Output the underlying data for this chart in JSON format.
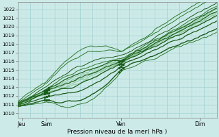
{
  "title": "",
  "xlabel": "Pression niveau de la mer( hPa )",
  "ylim": [
    1009.5,
    1022.8
  ],
  "xlim": [
    0,
    96
  ],
  "yticks": [
    1010,
    1011,
    1012,
    1013,
    1014,
    1015,
    1016,
    1017,
    1018,
    1019,
    1020,
    1021,
    1022
  ],
  "xtick_positions": [
    2,
    14,
    50,
    88
  ],
  "xtick_labels": [
    "Jeu",
    "Sam",
    "Ven",
    "Dim"
  ],
  "bg_color": "#cceae8",
  "grid_color_major": "#99cccc",
  "grid_color_minor": "#bbdddd",
  "line_color_dark": "#1a5c1a",
  "line_color_mid": "#2d7a2d",
  "line_color_light": "#5aaa5a",
  "num_steps": 97
}
